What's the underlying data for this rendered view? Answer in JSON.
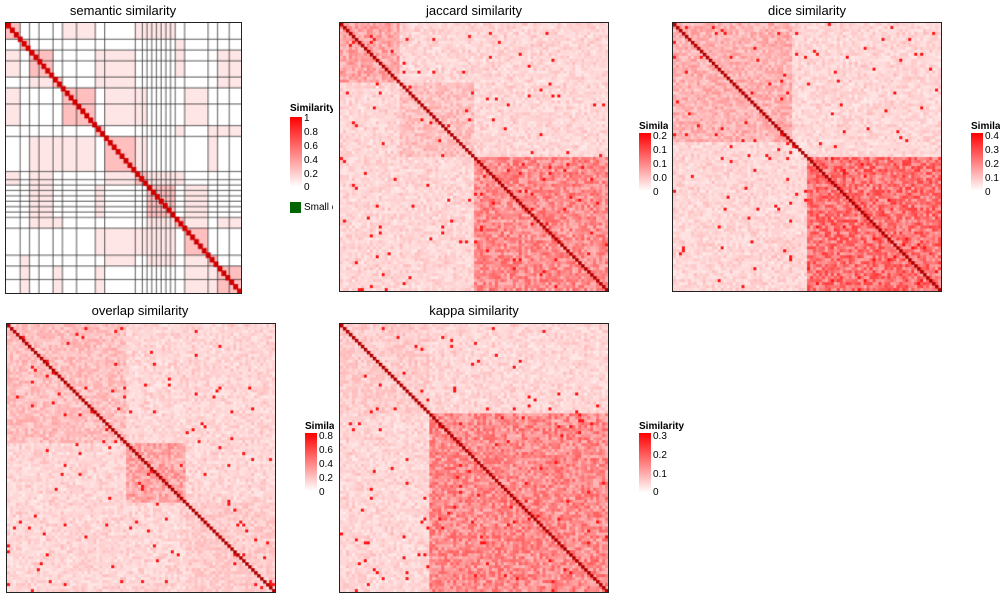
{
  "palette": {
    "low": "#ffffff",
    "high": "#ff0000",
    "diag": "#cc0000",
    "small_cluster": "#006400",
    "grid": "#333333"
  },
  "chart_data": [
    {
      "type": "heatmap",
      "title": "semantic similarity",
      "legend": {
        "title": "Similarity",
        "ticks": [
          "1",
          "0.8",
          "0.6",
          "0.4",
          "0.2",
          "0"
        ],
        "extra_label": "Small cluster",
        "placement": "right"
      },
      "scale": [
        0,
        1
      ],
      "style": "blocks"
    },
    {
      "type": "heatmap",
      "title": "jaccard similarity",
      "legend": {
        "title": "Similarity",
        "ticks": [
          "0.2",
          "0.1",
          "0.1",
          "0.0",
          "0"
        ],
        "placement": "right"
      },
      "scale": [
        0,
        0.25
      ],
      "style": "dense"
    },
    {
      "type": "heatmap",
      "title": "dice similarity",
      "legend": {
        "title": "Similarity",
        "ticks": [
          "0.4",
          "0.3",
          "0.2",
          "0.1",
          "0"
        ],
        "placement": "right"
      },
      "scale": [
        0,
        0.4
      ],
      "style": "dense"
    },
    {
      "type": "heatmap",
      "title": "overlap similarity",
      "legend": {
        "title": "Similarity",
        "ticks": [
          "0.8",
          "0.6",
          "0.4",
          "0.2",
          "0"
        ],
        "placement": "right"
      },
      "scale": [
        0,
        0.8
      ],
      "style": "dense"
    },
    {
      "type": "heatmap",
      "title": "kappa similarity",
      "legend": {
        "title": "Similarity",
        "ticks": [
          "0.3",
          "0.2",
          "0.1",
          "0"
        ],
        "placement": "right"
      },
      "scale": [
        0,
        0.3
      ],
      "style": "dense"
    }
  ]
}
